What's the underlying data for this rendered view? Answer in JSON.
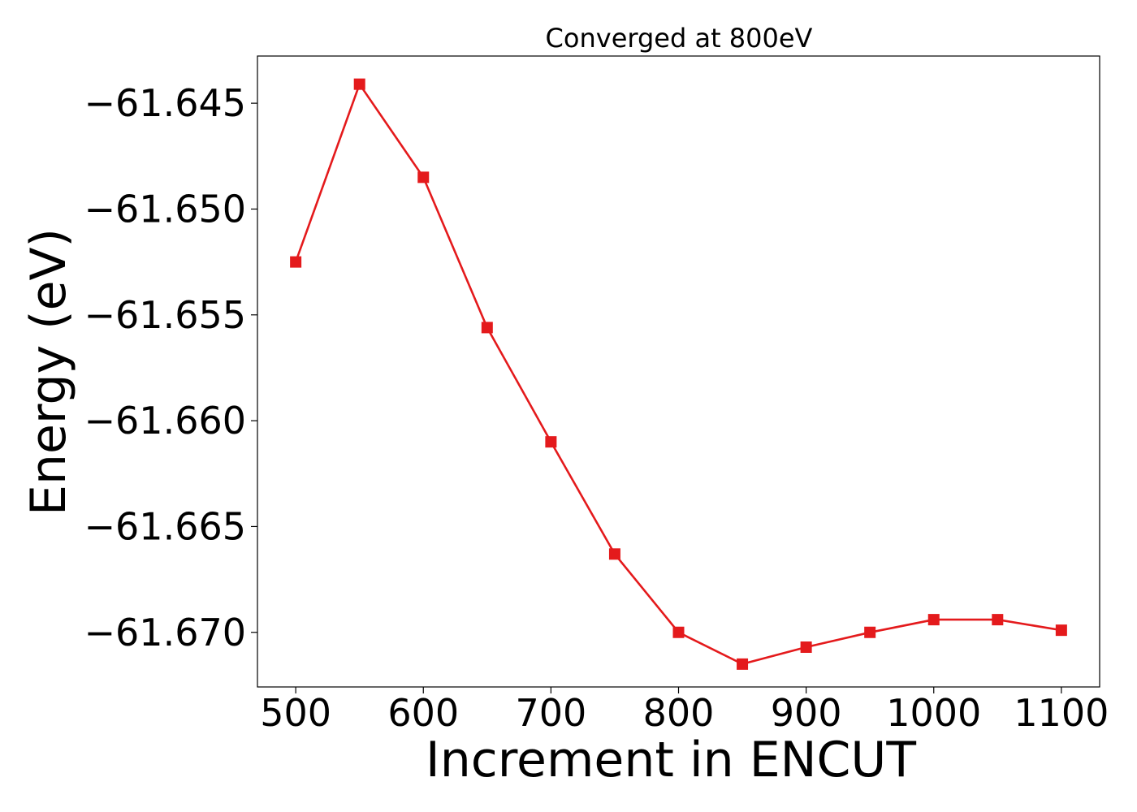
{
  "chart_data": {
    "type": "line",
    "title": "Converged at 800eV",
    "xlabel": "Increment in ENCUT",
    "ylabel": "Energy (eV)",
    "x": [
      500,
      550,
      600,
      650,
      700,
      750,
      800,
      850,
      900,
      950,
      1000,
      1050,
      1100
    ],
    "series": [
      {
        "values": [
          -61.6525,
          -61.6441,
          -61.6485,
          -61.6556,
          -61.661,
          -61.6663,
          -61.67,
          -61.6715,
          -61.6707,
          -61.67,
          -61.6694,
          -61.6694,
          -61.6699
        ]
      }
    ],
    "x_ticks": [
      500,
      600,
      700,
      800,
      900,
      1000,
      1100
    ],
    "y_ticks": [
      -61.645,
      -61.65,
      -61.655,
      -61.66,
      -61.665,
      -61.67
    ],
    "x_tick_labels": [
      "500",
      "600",
      "700",
      "800",
      "900",
      "1000",
      "1100"
    ],
    "y_tick_labels": [
      "−61.645",
      "−61.650",
      "−61.655",
      "−61.660",
      "−61.665",
      "−61.670"
    ],
    "xlim": [
      470,
      1130
    ],
    "ylim": [
      -61.67258,
      -61.64277
    ],
    "grid": false,
    "line_color": "#e41a1c",
    "marker": "square"
  }
}
